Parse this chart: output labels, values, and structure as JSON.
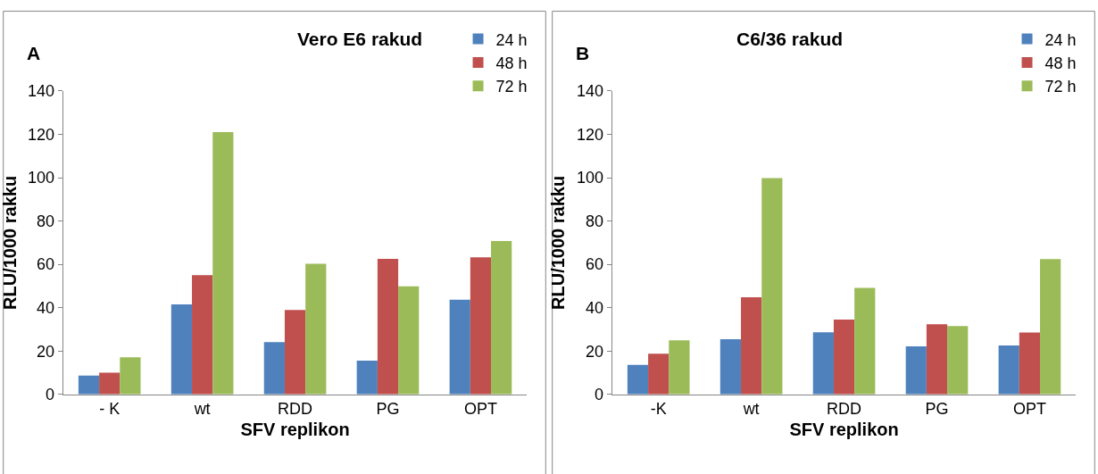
{
  "chart_data": [
    {
      "type": "bar",
      "title": "Vero E6 rakud",
      "xlabel": "SFV replikon",
      "ylabel": "RLU/1000 rakku",
      "annotations": [
        "A"
      ],
      "categories": [
        "- K",
        "wt",
        "RDD",
        "PG",
        "OPT"
      ],
      "series": [
        {
          "name": "24 h",
          "color": "#4f81bd",
          "values": [
            8.7,
            41.5,
            24.1,
            15.6,
            43.7
          ]
        },
        {
          "name": "48 h",
          "color": "#c0504d",
          "values": [
            10,
            55,
            38.9,
            62.5,
            63.3
          ]
        },
        {
          "name": "72 h",
          "color": "#9bbb59",
          "values": [
            17.1,
            121,
            60.3,
            49.9,
            70.8
          ]
        }
      ],
      "ylim": [
        0,
        140
      ],
      "yticks": [
        0,
        20,
        40,
        60,
        80,
        100,
        120,
        140
      ],
      "grid": false,
      "legend": "top right"
    },
    {
      "type": "bar",
      "title": "C6/36 rakud",
      "xlabel": "SFV replikon",
      "ylabel": "RLU/1000 rakku",
      "annotations": [
        "B"
      ],
      "categories": [
        "-K",
        "wt",
        "RDD",
        "PG",
        "OPT"
      ],
      "series": [
        {
          "name": "24 h",
          "color": "#4f81bd",
          "values": [
            13.6,
            25.5,
            28.7,
            22.2,
            22.6
          ]
        },
        {
          "name": "48 h",
          "color": "#c0504d",
          "values": [
            18.8,
            44.8,
            34.5,
            32.4,
            28.6
          ]
        },
        {
          "name": "72 h",
          "color": "#9bbb59",
          "values": [
            24.9,
            99.8,
            49.1,
            31.5,
            62.4
          ]
        }
      ],
      "ylim": [
        0,
        140
      ],
      "yticks": [
        0,
        20,
        40,
        60,
        80,
        100,
        120,
        140
      ],
      "grid": false,
      "legend": "top right"
    }
  ]
}
